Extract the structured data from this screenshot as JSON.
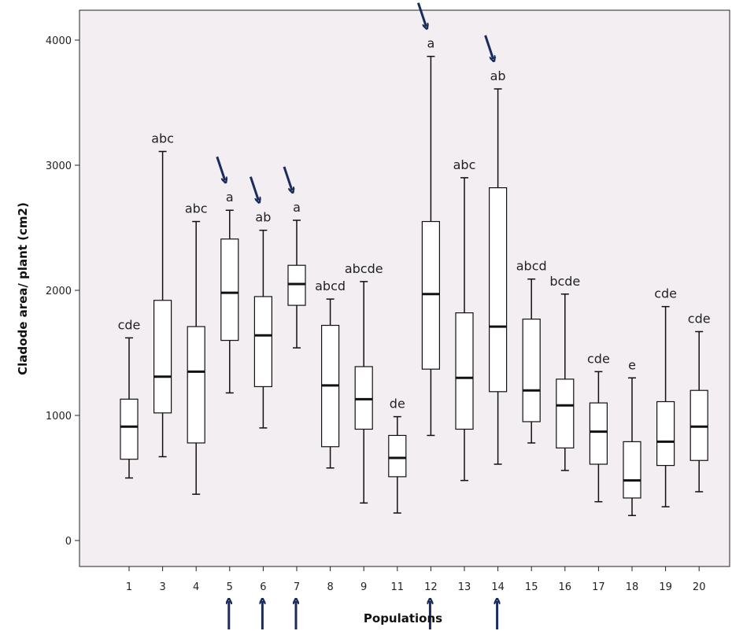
{
  "chart_data": {
    "type": "boxplot",
    "xlabel": "Populations",
    "ylabel": "Cladode area/ plant (cm2)",
    "ylim": [
      -200,
      4250
    ],
    "yticks": [
      0,
      1000,
      2000,
      3000,
      4000
    ],
    "grid": false,
    "background": "#f2eef2",
    "arrow_color": "#1a2b5c",
    "categories": [
      "1",
      "3",
      "4",
      "5",
      "6",
      "7",
      "8",
      "9",
      "11",
      "12",
      "13",
      "14",
      "15",
      "16",
      "17",
      "18",
      "19",
      "20"
    ],
    "boxes": [
      {
        "population": "1",
        "min": 500,
        "q1": 650,
        "median": 910,
        "q3": 1130,
        "max": 1620,
        "group": "cde"
      },
      {
        "population": "3",
        "min": 670,
        "q1": 1020,
        "median": 1310,
        "q3": 1920,
        "max": 3110,
        "group": "abc"
      },
      {
        "population": "4",
        "min": 370,
        "q1": 780,
        "median": 1350,
        "q3": 1710,
        "max": 2550,
        "group": "abc"
      },
      {
        "population": "5",
        "min": 1180,
        "q1": 1600,
        "median": 1980,
        "q3": 2410,
        "max": 2640,
        "group": "a"
      },
      {
        "population": "6",
        "min": 900,
        "q1": 1230,
        "median": 1640,
        "q3": 1950,
        "max": 2480,
        "group": "ab"
      },
      {
        "population": "7",
        "min": 1540,
        "q1": 1880,
        "median": 2050,
        "q3": 2200,
        "max": 2560,
        "group": "a"
      },
      {
        "population": "8",
        "min": 580,
        "q1": 750,
        "median": 1240,
        "q3": 1720,
        "max": 1930,
        "group": "abcd"
      },
      {
        "population": "9",
        "min": 300,
        "q1": 890,
        "median": 1130,
        "q3": 1390,
        "max": 2070,
        "group": "abcde"
      },
      {
        "population": "11",
        "min": 220,
        "q1": 510,
        "median": 660,
        "q3": 840,
        "max": 990,
        "group": "de"
      },
      {
        "population": "12",
        "min": 840,
        "q1": 1370,
        "median": 1970,
        "q3": 2550,
        "max": 3870,
        "group": "a"
      },
      {
        "population": "13",
        "min": 480,
        "q1": 890,
        "median": 1300,
        "q3": 1820,
        "max": 2900,
        "group": "abc"
      },
      {
        "population": "14",
        "min": 610,
        "q1": 1190,
        "median": 1710,
        "q3": 2820,
        "max": 3610,
        "group": "ab"
      },
      {
        "population": "15",
        "min": 780,
        "q1": 950,
        "median": 1200,
        "q3": 1770,
        "max": 2090,
        "group": "abcd"
      },
      {
        "population": "16",
        "min": 560,
        "q1": 740,
        "median": 1080,
        "q3": 1290,
        "max": 1970,
        "group": "bcde"
      },
      {
        "population": "17",
        "min": 310,
        "q1": 610,
        "median": 870,
        "q3": 1100,
        "max": 1350,
        "group": "cde"
      },
      {
        "population": "18",
        "min": 200,
        "q1": 340,
        "median": 480,
        "q3": 790,
        "max": 1300,
        "group": "e"
      },
      {
        "population": "19",
        "min": 270,
        "q1": 600,
        "median": 790,
        "q3": 1110,
        "max": 1870,
        "group": "cde"
      },
      {
        "population": "20",
        "min": 390,
        "q1": 640,
        "median": 910,
        "q3": 1200,
        "max": 1670,
        "group": "cde"
      }
    ],
    "top_arrows": [
      "5",
      "6",
      "7",
      "12",
      "14"
    ],
    "bottom_arrows": [
      "5",
      "6",
      "7",
      "12",
      "14"
    ]
  }
}
